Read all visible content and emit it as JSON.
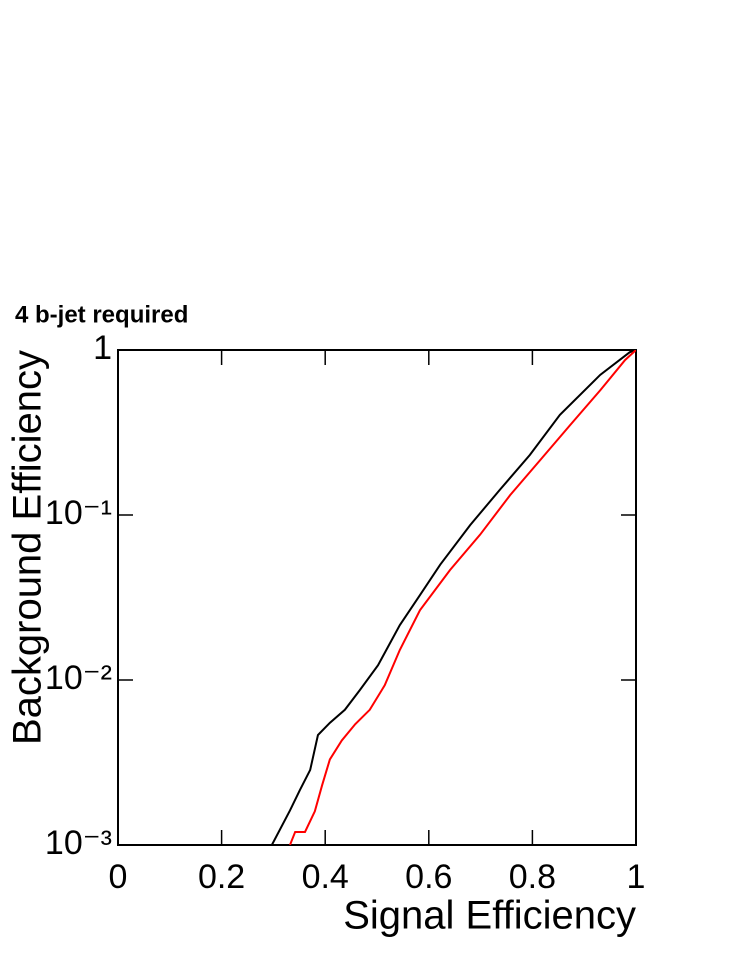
{
  "chart_data": {
    "type": "line",
    "title": "4 b-jet required",
    "x_label": "Signal Efficiency",
    "y_label": "Background Efficiency",
    "log_y": true,
    "xlim": [
      0,
      1
    ],
    "xticks": [
      0,
      0.2,
      0.4,
      0.6,
      0.8,
      1
    ],
    "ylim": [
      0.001,
      1
    ],
    "yticks": [
      {
        "value": 0.001,
        "label": "10⁻³"
      },
      {
        "value": 0.01,
        "label": "10⁻²"
      },
      {
        "value": 0.1,
        "label": "10⁻¹"
      },
      1
    ],
    "series": [
      {
        "color": "#000000",
        "x": [
          0.297,
          0.332,
          0.351,
          0.371,
          0.386,
          0.409,
          0.438,
          0.467,
          0.502,
          0.544,
          0.583,
          0.622,
          0.68,
          0.737,
          0.795,
          0.853,
          0.931,
          0.988,
          1
        ],
        "values": [
          0.001,
          0.00162,
          0.00215,
          0.00285,
          0.00464,
          0.0055,
          0.0066,
          0.0087,
          0.0123,
          0.0215,
          0.0327,
          0.05,
          0.087,
          0.142,
          0.231,
          0.404,
          0.707,
          0.97,
          1
        ]
      },
      {
        "color": "#ff0000",
        "x": [
          0.332,
          0.342,
          0.361,
          0.38,
          0.394,
          0.409,
          0.432,
          0.458,
          0.486,
          0.515,
          0.544,
          0.583,
          0.641,
          0.699,
          0.757,
          0.815,
          0.873,
          0.931,
          0.979,
          1
        ],
        "values": [
          0.001,
          0.0012,
          0.0012,
          0.0016,
          0.0023,
          0.0033,
          0.0043,
          0.0054,
          0.0066,
          0.0093,
          0.0152,
          0.0265,
          0.0464,
          0.076,
          0.132,
          0.215,
          0.351,
          0.57,
          0.87,
          1
        ]
      }
    ]
  }
}
